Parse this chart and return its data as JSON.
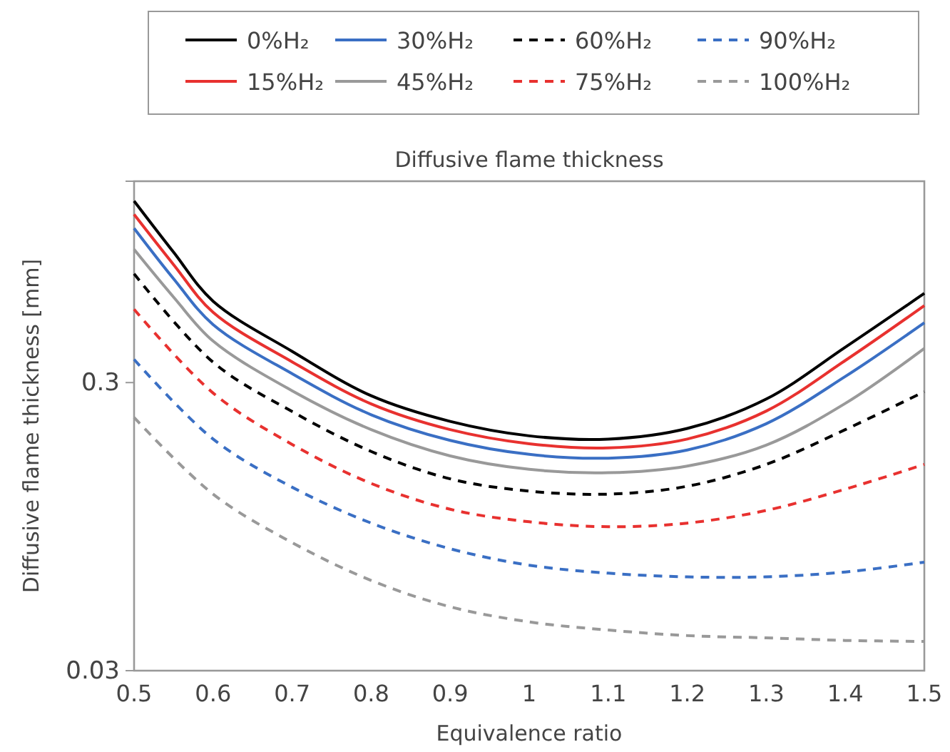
{
  "chart_data": {
    "type": "line",
    "title": "Diffusive flame thickness",
    "xlabel": "Equivalence ratio",
    "ylabel": "Diffusive flame thickness [mm]",
    "log": "y",
    "xlim": [
      0.5,
      1.5
    ],
    "xticks": [
      0.5,
      0.6,
      0.7,
      0.8,
      0.9,
      1,
      1.1,
      1.2,
      1.3,
      1.4,
      1.5
    ],
    "ylim": [
      0.03,
      1.5
    ],
    "yticks": [
      0.03,
      0.3
    ],
    "grid": false,
    "legend": "top",
    "marker": "none",
    "series": [
      {
        "name": "0%H₂",
        "color": "#000000",
        "line_style": "solid",
        "x": [
          0.5,
          0.55,
          0.6,
          0.7,
          0.8,
          0.9,
          1,
          1.1,
          1.2,
          1.3,
          1.4,
          1.5
        ],
        "values": [
          1.28,
          0.85,
          0.575,
          0.385,
          0.27,
          0.22,
          0.196,
          0.191,
          0.208,
          0.263,
          0.398,
          0.612
        ]
      },
      {
        "name": "15%H₂",
        "color": "#e8312f",
        "line_style": "solid",
        "x": [
          0.5,
          0.55,
          0.6,
          0.7,
          0.8,
          0.9,
          1,
          1.1,
          1.2,
          1.3,
          1.4,
          1.5
        ],
        "values": [
          1.15,
          0.77,
          0.526,
          0.354,
          0.253,
          0.206,
          0.184,
          0.178,
          0.191,
          0.239,
          0.358,
          0.555
        ]
      },
      {
        "name": "30%H₂",
        "color": "#3a6fc4",
        "line_style": "solid",
        "x": [
          0.5,
          0.55,
          0.6,
          0.7,
          0.8,
          0.9,
          1,
          1.1,
          1.2,
          1.3,
          1.4,
          1.5
        ],
        "values": [
          1.03,
          0.688,
          0.477,
          0.322,
          0.232,
          0.189,
          0.169,
          0.164,
          0.175,
          0.216,
          0.315,
          0.484
        ]
      },
      {
        "name": "45%H₂",
        "color": "#999999",
        "line_style": "solid",
        "x": [
          0.5,
          0.55,
          0.6,
          0.7,
          0.8,
          0.9,
          1,
          1.1,
          1.2,
          1.3,
          1.4,
          1.5
        ],
        "values": [
          0.87,
          0.594,
          0.418,
          0.281,
          0.206,
          0.167,
          0.15,
          0.146,
          0.154,
          0.182,
          0.254,
          0.394
        ]
      },
      {
        "name": "60%H₂",
        "color": "#000000",
        "line_style": "dashed",
        "x": [
          0.5,
          0.6,
          0.7,
          0.8,
          0.9,
          1,
          1.1,
          1.2,
          1.3,
          1.4,
          1.5
        ],
        "values": [
          0.716,
          0.353,
          0.238,
          0.173,
          0.139,
          0.126,
          0.123,
          0.131,
          0.156,
          0.206,
          0.279
        ]
      },
      {
        "name": "75%H₂",
        "color": "#e8312f",
        "line_style": "dashed",
        "x": [
          0.5,
          0.6,
          0.7,
          0.8,
          0.9,
          1,
          1.1,
          1.2,
          1.3,
          1.4,
          1.5
        ],
        "values": [
          0.539,
          0.276,
          0.183,
          0.134,
          0.109,
          0.0986,
          0.0948,
          0.0976,
          0.108,
          0.128,
          0.156
        ]
      },
      {
        "name": "90%H₂",
        "color": "#3a6fc4",
        "line_style": "dashed",
        "x": [
          0.5,
          0.6,
          0.7,
          0.8,
          0.9,
          1,
          1.1,
          1.2,
          1.3,
          1.4,
          1.5
        ],
        "values": [
          0.361,
          0.191,
          0.13,
          0.0976,
          0.0795,
          0.0697,
          0.0654,
          0.0635,
          0.0635,
          0.066,
          0.0714
        ]
      },
      {
        "name": "100%H₂",
        "color": "#999999",
        "line_style": "dashed",
        "x": [
          0.5,
          0.6,
          0.7,
          0.8,
          0.9,
          1,
          1.1,
          1.2,
          1.3,
          1.4,
          1.5
        ],
        "values": [
          0.227,
          0.123,
          0.0835,
          0.0617,
          0.05,
          0.0443,
          0.0415,
          0.0397,
          0.039,
          0.0382,
          0.0379
        ]
      }
    ]
  }
}
